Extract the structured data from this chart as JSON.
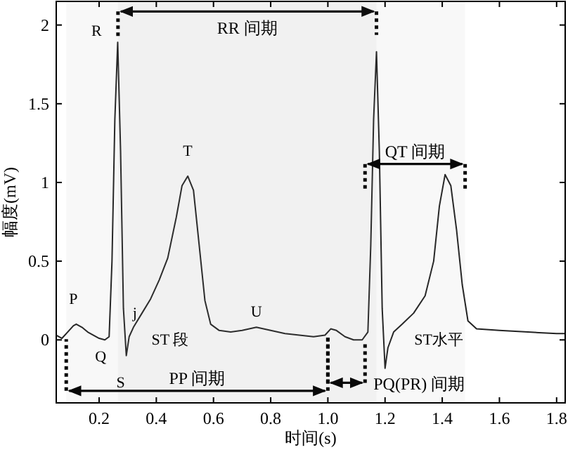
{
  "chart_data": {
    "type": "line",
    "xlabel": "时间(s)",
    "ylabel": "幅度(mV)",
    "x": [
      0.05,
      0.07,
      0.09,
      0.11,
      0.12,
      0.14,
      0.16,
      0.18,
      0.2,
      0.22,
      0.235,
      0.245,
      0.255,
      0.265,
      0.275,
      0.285,
      0.295,
      0.305,
      0.32,
      0.35,
      0.38,
      0.41,
      0.44,
      0.47,
      0.49,
      0.51,
      0.53,
      0.55,
      0.57,
      0.59,
      0.62,
      0.66,
      0.7,
      0.75,
      0.8,
      0.85,
      0.9,
      0.95,
      0.99,
      1.01,
      1.03,
      1.06,
      1.09,
      1.12,
      1.14,
      1.15,
      1.16,
      1.17,
      1.18,
      1.19,
      1.2,
      1.21,
      1.23,
      1.26,
      1.3,
      1.34,
      1.37,
      1.39,
      1.41,
      1.43,
      1.45,
      1.47,
      1.49,
      1.52,
      1.6,
      1.7,
      1.8,
      1.83
    ],
    "series": [
      {
        "color": "#222222",
        "values": [
          0.03,
          0.01,
          0.05,
          0.09,
          0.1,
          0.08,
          0.05,
          0.03,
          0.01,
          0.0,
          0.02,
          0.5,
          1.4,
          1.89,
          1.2,
          0.2,
          -0.1,
          0.02,
          0.08,
          0.17,
          0.26,
          0.38,
          0.52,
          0.78,
          0.98,
          1.04,
          0.95,
          0.6,
          0.25,
          0.1,
          0.06,
          0.05,
          0.06,
          0.08,
          0.06,
          0.04,
          0.03,
          0.02,
          0.03,
          0.07,
          0.06,
          0.02,
          0.0,
          0.0,
          0.05,
          0.6,
          1.4,
          1.83,
          1.2,
          0.2,
          -0.18,
          -0.05,
          0.05,
          0.1,
          0.17,
          0.28,
          0.5,
          0.85,
          1.05,
          0.98,
          0.7,
          0.35,
          0.12,
          0.07,
          0.06,
          0.05,
          0.04,
          0.04
        ]
      }
    ],
    "xlim": [
      0.05,
      1.83
    ],
    "ylim": [
      -0.4,
      2.15
    ],
    "xticks": [
      0.2,
      0.4,
      0.6,
      0.8,
      {
        "value": 1,
        "label": "1.0"
      },
      1.2,
      1.4,
      1.6,
      1.8
    ],
    "yticks": [
      0,
      0.5,
      1,
      1.5,
      2
    ],
    "grid": false,
    "marker": "none",
    "line_style": "solid",
    "annotations": [
      {
        "text": "P",
        "x": 0.12,
        "y": 0.1
      },
      {
        "text": "Q",
        "x": 0.22,
        "y": 0.0
      },
      {
        "text": "R",
        "x": 0.265,
        "y": 1.89
      },
      {
        "text": "S",
        "x": 0.295,
        "y": -0.1
      },
      {
        "text": "j",
        "x": 0.305,
        "y": 0.02
      },
      {
        "text": "ST 段",
        "x": 0.32,
        "y": 0.08
      },
      {
        "text": "T",
        "x": 0.51,
        "y": 1.04
      },
      {
        "text": "U",
        "x": 0.75,
        "y": 0.08
      },
      {
        "text": "ST水平",
        "x": 1.26,
        "y": 0.1
      }
    ],
    "bands": [
      {
        "axis": "x",
        "from": 0.266,
        "to": 1.17,
        "label": "RR 间期"
      },
      {
        "axis": "x",
        "from": 1.13,
        "to": 1.48,
        "label": "QT 间期"
      },
      {
        "axis": "x",
        "from": 0.085,
        "to": 1.0,
        "label": "PP 间期"
      },
      {
        "axis": "x",
        "from": 1.0,
        "to": 1.13,
        "label": "PQ(PR) 间期"
      }
    ]
  }
}
